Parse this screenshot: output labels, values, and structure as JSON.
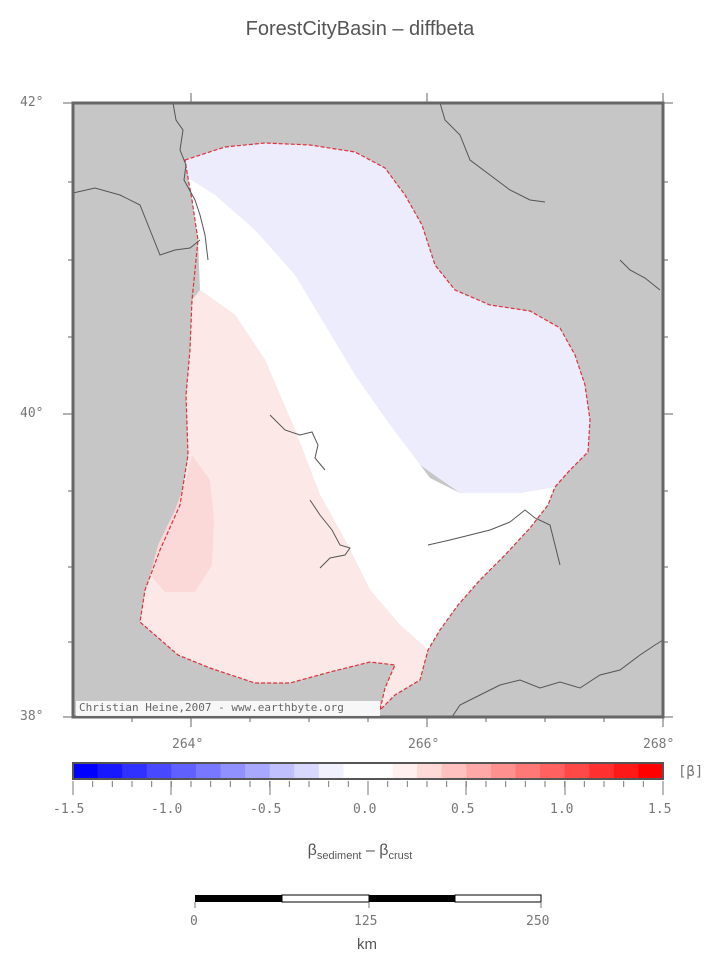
{
  "title": "ForestCityBasin – diffbeta",
  "map": {
    "lat_labels": [
      "42°",
      "40°",
      "38°"
    ],
    "lon_labels": [
      "264°",
      "266°",
      "268°"
    ],
    "credit": "Christian Heine,2007 - www.earthbyte.org",
    "colors": {
      "land": "#c6c6c6",
      "basin_outline": "#e0303a",
      "coast": "#555555",
      "blue_zone": "#ececfc",
      "white_zone": "#ffffff",
      "pink_zone": "#fde8e8",
      "pink_deep": "#fbd9d9"
    }
  },
  "colorbar": {
    "unit": "[β]",
    "ticks": [
      "-1.5",
      "-1.0",
      "-0.5",
      "0.0",
      "0.5",
      "1.0",
      "1.5"
    ],
    "label_main": "β",
    "label_sub1": "sediment",
    "label_minus": " – β",
    "label_sub2": "crust",
    "swatches": [
      "#0000ff",
      "#1818ff",
      "#3030ff",
      "#4848ff",
      "#6060ff",
      "#7878ff",
      "#9090ff",
      "#a8a8ff",
      "#c0c0ff",
      "#d8d8ff",
      "#f0f0ff",
      "#ffffff",
      "#ffffff",
      "#fff0f0",
      "#ffd8d8",
      "#ffc0c0",
      "#ffa8a8",
      "#ff9090",
      "#ff7878",
      "#ff6060",
      "#ff4848",
      "#ff3030",
      "#ff1818",
      "#ff0000"
    ]
  },
  "scalebar": {
    "ticks": [
      "0",
      "125",
      "250"
    ],
    "unit": "km"
  }
}
